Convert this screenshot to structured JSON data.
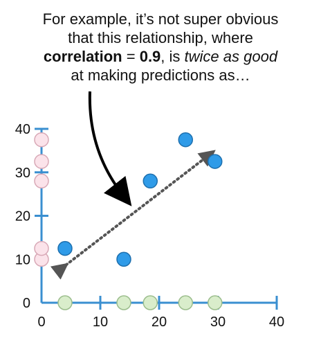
{
  "caption": {
    "line1": "For example, it’s not super obvious",
    "line2": "that this relationship, where",
    "line3_bold1": "correlation",
    "line3_mid": " = ",
    "line3_bold2": "0.9",
    "line3_after": ", is ",
    "line3_italic": "twice as good",
    "line4": "at making predictions as…"
  },
  "colors": {
    "axis": "#3a8fd0",
    "point_fill": "#2f9be8",
    "point_stroke": "#1d6fae",
    "x_marginal_fill": "#d9edcb",
    "x_marginal_stroke": "#9bbd8c",
    "y_marginal_fill": "#fbe3ea",
    "y_marginal_stroke": "#d8a8b6",
    "arrow": "#000000",
    "dotted_line": "#555555"
  },
  "chart_data": {
    "type": "scatter",
    "x_ticks": [
      "0",
      "10",
      "20",
      "30",
      "40"
    ],
    "y_ticks": [
      "0",
      "10",
      "20",
      "30",
      "40"
    ],
    "xlim": [
      0,
      40
    ],
    "ylim": [
      0,
      40
    ],
    "grid": false,
    "points": [
      {
        "x": 4,
        "y": 12.5
      },
      {
        "x": 14,
        "y": 10
      },
      {
        "x": 18.5,
        "y": 28
      },
      {
        "x": 24.5,
        "y": 37.5
      },
      {
        "x": 29.5,
        "y": 32.5
      }
    ],
    "x_marginal": [
      4,
      14,
      18.5,
      24.5,
      29.5
    ],
    "y_marginal": [
      10,
      12.5,
      28,
      32.5,
      37.5
    ],
    "trend_line": {
      "from": [
        3.5,
        8
      ],
      "to": [
        28.5,
        34
      ]
    }
  }
}
